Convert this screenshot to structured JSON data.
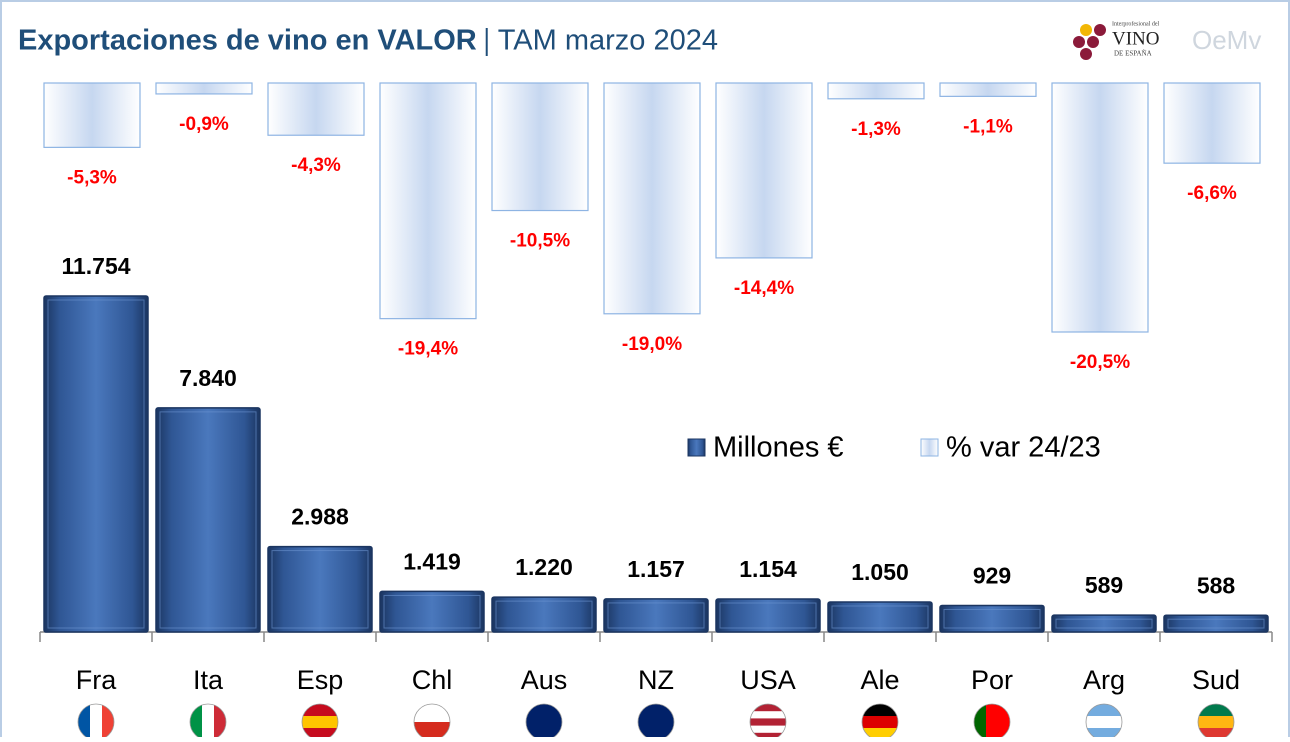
{
  "chart_data": {
    "type": "bar",
    "title": "Exportaciones de vino en VALOR",
    "subtitle": "TAM marzo 2024",
    "logo": {
      "small": "Interprofesional del",
      "name": "VINO",
      "sub": "DE ESPAÑA",
      "second": "OeMv"
    },
    "categories": [
      "Fra",
      "Ita",
      "Esp",
      "Chl",
      "Aus",
      "NZ",
      "USA",
      "Ale",
      "Por",
      "Arg",
      "Sud"
    ],
    "series": [
      {
        "name": "Millones €",
        "color": "#2f5694",
        "values": [
          11754,
          7840,
          2988,
          1419,
          1220,
          1157,
          1154,
          1050,
          929,
          589,
          588
        ],
        "value_labels": [
          "11.754",
          "7.840",
          "2.988",
          "1.419",
          "1.220",
          "1.157",
          "1.154",
          "1.050",
          "929",
          "589",
          "588"
        ]
      },
      {
        "name": "% var 24/23",
        "color": "#c6d7f0",
        "values": [
          -5.3,
          -0.9,
          -4.3,
          -19.4,
          -10.5,
          -19.0,
          -14.4,
          -1.3,
          -1.1,
          -20.5,
          -6.6
        ],
        "value_labels": [
          "-5,3%",
          "-0,9%",
          "-4,3%",
          "-19,4%",
          "-10,5%",
          "-19,0%",
          "-14,4%",
          "-1,3%",
          "-1,1%",
          "-20,5%",
          "-6,6%"
        ]
      }
    ],
    "legend": "center"
  }
}
